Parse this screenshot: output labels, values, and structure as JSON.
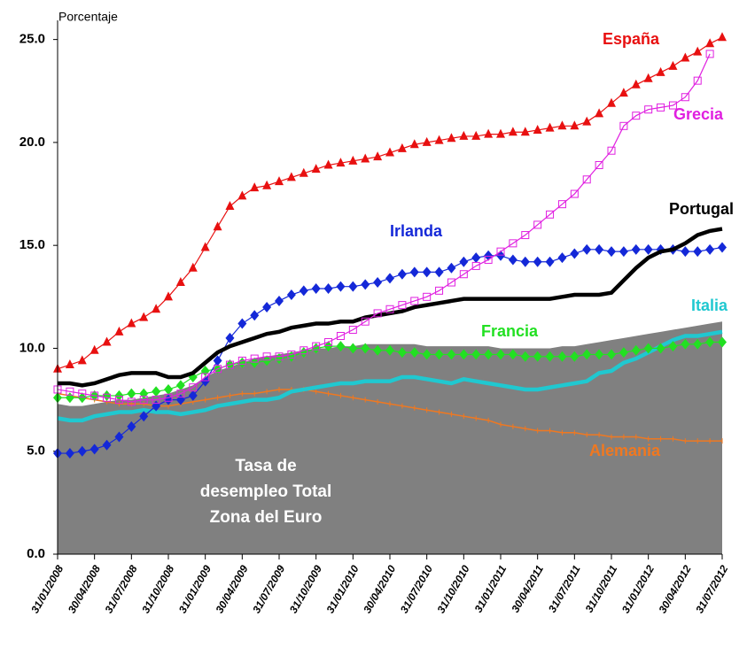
{
  "chart_data": {
    "type": "line",
    "y_label": "Porcentaje",
    "categories": [
      "31/01/2008",
      null,
      null,
      "30/04/2008",
      null,
      null,
      "31/07/2008",
      null,
      null,
      "31/10/2008",
      null,
      null,
      "31/01/2009",
      null,
      null,
      "30/04/2009",
      null,
      null,
      "31/07/2009",
      null,
      null,
      "31/10/2009",
      null,
      null,
      "31/01/2010",
      null,
      null,
      "30/04/2010",
      null,
      null,
      "31/07/2010",
      null,
      null,
      "31/10/2010",
      null,
      null,
      "31/01/2011",
      null,
      null,
      "30/04/2011",
      null,
      null,
      "31/07/2011",
      null,
      null,
      "31/10/2011",
      null,
      null,
      "31/01/2012",
      null,
      null,
      "30/04/2012",
      null,
      null,
      "31/07/2012"
    ],
    "ylim": [
      0,
      25.5
    ],
    "yticks": [
      {
        "value": 0,
        "label": "0.0"
      },
      {
        "value": 5,
        "label": "5.0"
      },
      {
        "value": 10,
        "label": "10.0"
      },
      {
        "value": 15,
        "label": "15.0"
      },
      {
        "value": 20,
        "label": "20.0"
      },
      {
        "value": 25,
        "label": "25.0"
      }
    ],
    "series": [
      {
        "name": "Tasa de desempleo Total Zona del Euro",
        "color": "#808080",
        "marker": "area",
        "values": [
          7.3,
          7.2,
          7.2,
          7.3,
          7.4,
          7.5,
          7.5,
          7.6,
          7.7,
          7.8,
          8.0,
          8.2,
          8.6,
          8.9,
          9.1,
          9.3,
          9.5,
          9.6,
          9.7,
          9.8,
          9.9,
          10.0,
          10.0,
          10.1,
          10.1,
          10.2,
          10.2,
          10.2,
          10.2,
          10.2,
          10.1,
          10.1,
          10.1,
          10.1,
          10.1,
          10.1,
          10.0,
          10.0,
          10.0,
          10.0,
          10.0,
          10.1,
          10.1,
          10.2,
          10.3,
          10.4,
          10.5,
          10.6,
          10.7,
          10.8,
          10.9,
          11.0,
          11.1,
          11.2,
          11.3
        ]
      },
      {
        "name": "Alemania",
        "color": "#f07820",
        "marker": "plus",
        "values": [
          7.8,
          7.7,
          7.6,
          7.5,
          7.4,
          7.3,
          7.3,
          7.3,
          7.2,
          7.2,
          7.3,
          7.4,
          7.5,
          7.6,
          7.7,
          7.8,
          7.8,
          7.9,
          8.0,
          8.0,
          8.0,
          7.9,
          7.8,
          7.7,
          7.6,
          7.5,
          7.4,
          7.3,
          7.2,
          7.1,
          7.0,
          6.9,
          6.8,
          6.7,
          6.6,
          6.5,
          6.3,
          6.2,
          6.1,
          6.0,
          6.0,
          5.9,
          5.9,
          5.8,
          5.8,
          5.7,
          5.7,
          5.7,
          5.6,
          5.6,
          5.6,
          5.5,
          5.5,
          5.5,
          5.5
        ]
      },
      {
        "name": "Italia",
        "color": "#20c8d0",
        "marker": "none",
        "values": [
          6.6,
          6.5,
          6.5,
          6.7,
          6.8,
          6.9,
          6.9,
          7.0,
          6.9,
          6.9,
          6.8,
          6.9,
          7.0,
          7.2,
          7.3,
          7.4,
          7.5,
          7.5,
          7.6,
          7.9,
          8.0,
          8.1,
          8.2,
          8.3,
          8.3,
          8.4,
          8.4,
          8.4,
          8.6,
          8.6,
          8.5,
          8.4,
          8.3,
          8.5,
          8.4,
          8.3,
          8.2,
          8.1,
          8.0,
          8.0,
          8.1,
          8.2,
          8.3,
          8.4,
          8.8,
          8.9,
          9.3,
          9.5,
          9.8,
          10.1,
          10.4,
          10.6,
          10.6,
          10.7,
          10.8
        ]
      },
      {
        "name": "Francia",
        "color": "#22e022",
        "marker": "diamond",
        "values": [
          7.6,
          7.6,
          7.6,
          7.7,
          7.7,
          7.7,
          7.8,
          7.8,
          7.9,
          8.0,
          8.2,
          8.6,
          8.9,
          9.0,
          9.2,
          9.3,
          9.3,
          9.4,
          9.5,
          9.6,
          9.8,
          10.0,
          10.1,
          10.1,
          10.0,
          10.0,
          9.9,
          9.9,
          9.8,
          9.8,
          9.7,
          9.7,
          9.7,
          9.7,
          9.7,
          9.7,
          9.7,
          9.7,
          9.6,
          9.6,
          9.6,
          9.6,
          9.6,
          9.7,
          9.7,
          9.7,
          9.8,
          9.9,
          10.0,
          10.0,
          10.1,
          10.2,
          10.2,
          10.3,
          10.3
        ]
      },
      {
        "name": "Irlanda",
        "color": "#1428d8",
        "marker": "diamond",
        "values": [
          4.9,
          4.9,
          5.0,
          5.1,
          5.3,
          5.7,
          6.2,
          6.7,
          7.2,
          7.5,
          7.5,
          7.7,
          8.4,
          9.4,
          10.5,
          11.2,
          11.6,
          12.0,
          12.3,
          12.6,
          12.8,
          12.9,
          12.9,
          13.0,
          13.0,
          13.1,
          13.2,
          13.4,
          13.6,
          13.7,
          13.7,
          13.7,
          13.9,
          14.2,
          14.4,
          14.5,
          14.5,
          14.3,
          14.2,
          14.2,
          14.2,
          14.4,
          14.6,
          14.8,
          14.8,
          14.7,
          14.7,
          14.8,
          14.8,
          14.8,
          14.8,
          14.7,
          14.7,
          14.8,
          14.9
        ]
      },
      {
        "name": "Portugal",
        "color": "#000000",
        "marker": "none",
        "values": [
          8.3,
          8.3,
          8.2,
          8.3,
          8.5,
          8.7,
          8.8,
          8.8,
          8.8,
          8.6,
          8.6,
          8.8,
          9.3,
          9.8,
          10.1,
          10.3,
          10.5,
          10.7,
          10.8,
          11.0,
          11.1,
          11.2,
          11.2,
          11.3,
          11.3,
          11.5,
          11.6,
          11.7,
          11.8,
          12.0,
          12.1,
          12.2,
          12.3,
          12.4,
          12.4,
          12.4,
          12.4,
          12.4,
          12.4,
          12.4,
          12.4,
          12.5,
          12.6,
          12.6,
          12.6,
          12.7,
          13.3,
          13.9,
          14.4,
          14.7,
          14.8,
          15.1,
          15.5,
          15.7,
          15.8
        ]
      },
      {
        "name": "Grecia",
        "color": "#e020e0",
        "marker": "square",
        "values": [
          8.0,
          7.9,
          7.8,
          7.7,
          7.6,
          7.5,
          7.4,
          7.5,
          7.5,
          7.6,
          7.8,
          8.1,
          8.6,
          9.0,
          9.2,
          9.4,
          9.5,
          9.6,
          9.6,
          9.7,
          9.9,
          10.1,
          10.3,
          10.6,
          10.9,
          11.3,
          11.7,
          11.9,
          12.1,
          12.3,
          12.5,
          12.8,
          13.2,
          13.6,
          14.0,
          14.3,
          14.7,
          15.1,
          15.5,
          16.0,
          16.5,
          17.0,
          17.5,
          18.2,
          18.9,
          19.6,
          20.8,
          21.3,
          21.6,
          21.7,
          21.8,
          22.2,
          23.0,
          24.3,
          null
        ]
      },
      {
        "name": "España",
        "color": "#e81010",
        "marker": "triangle",
        "values": [
          9.0,
          9.2,
          9.4,
          9.9,
          10.3,
          10.8,
          11.2,
          11.5,
          11.9,
          12.5,
          13.2,
          13.9,
          14.9,
          15.9,
          16.9,
          17.4,
          17.8,
          17.9,
          18.1,
          18.3,
          18.5,
          18.7,
          18.9,
          19.0,
          19.1,
          19.2,
          19.3,
          19.5,
          19.7,
          19.9,
          20.0,
          20.1,
          20.2,
          20.3,
          20.3,
          20.4,
          20.4,
          20.5,
          20.5,
          20.6,
          20.7,
          20.8,
          20.8,
          21.0,
          21.4,
          21.9,
          22.4,
          22.8,
          23.1,
          23.4,
          23.7,
          24.1,
          24.4,
          24.8,
          25.1
        ]
      }
    ]
  }
}
